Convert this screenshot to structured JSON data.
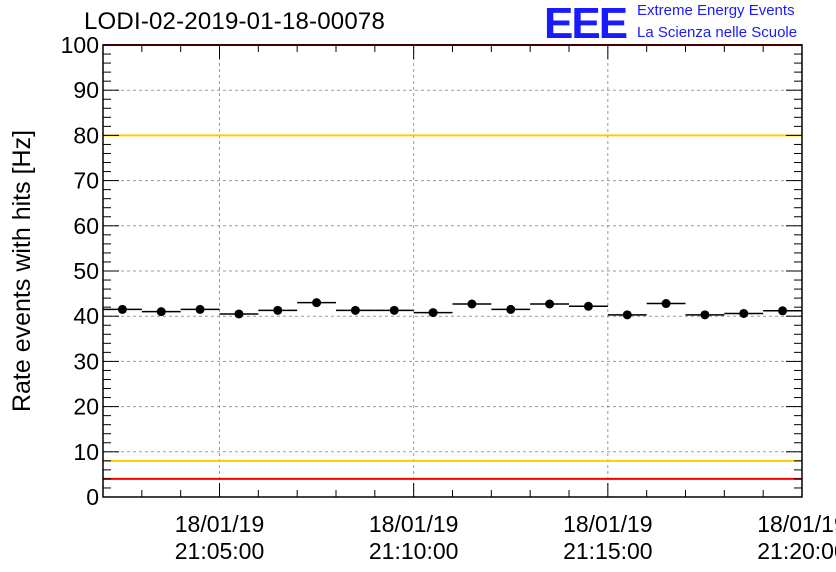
{
  "header": {
    "title": "LODI-02-2019-01-18-00078",
    "logo_text": "EEE",
    "logo_line1": "Extreme Energy Events",
    "logo_line2": "La Scienza nelle Scuole"
  },
  "colors": {
    "logo": "#1a1aff",
    "red_line": "#ff0000",
    "yellow_line": "#ffcc00",
    "grid": "#999999",
    "marker": "#000000"
  },
  "chart_data": {
    "type": "scatter",
    "title": "LODI-02-2019-01-18-00078",
    "ylabel": "Rate events with hits [Hz]",
    "xlabel": "",
    "ylim": [
      0,
      100
    ],
    "yticks": [
      0,
      10,
      20,
      30,
      40,
      50,
      60,
      70,
      80,
      90,
      100
    ],
    "xlim_seconds": [
      -180,
      900
    ],
    "x_ticks": [
      {
        "t": 0,
        "date": "18/01/19",
        "time": "21:05:00"
      },
      {
        "t": 300,
        "date": "18/01/19",
        "time": "21:10:00"
      },
      {
        "t": 600,
        "date": "18/01/19",
        "time": "21:15:00"
      },
      {
        "t": 900,
        "date": "18/01/19",
        "time": "21:20:00"
      }
    ],
    "x_unit": "seconds relative to 21:05:00",
    "bin_width_seconds": 60,
    "grid": true,
    "reference_lines": [
      {
        "value": 100,
        "color": "red"
      },
      {
        "value": 80,
        "color": "yellow"
      },
      {
        "value": 8,
        "color": "yellow"
      },
      {
        "value": 4,
        "color": "red"
      }
    ],
    "series": [
      {
        "name": "rate",
        "x": [
          -150,
          -90,
          -30,
          30,
          90,
          150,
          210,
          270,
          330,
          390,
          450,
          510,
          570,
          630,
          690,
          750,
          810,
          870
        ],
        "values": [
          41.5,
          41.0,
          41.5,
          40.5,
          41.3,
          43.0,
          41.3,
          41.3,
          40.8,
          42.7,
          41.5,
          42.7,
          42.2,
          40.3,
          42.8,
          40.3,
          40.6,
          41.2
        ]
      }
    ]
  }
}
